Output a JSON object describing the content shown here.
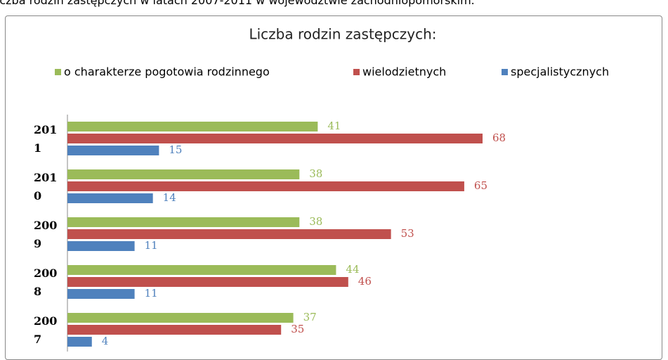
{
  "caption": "Liczba rodzin zastępczych w latach 2007-2011 w województwie zachodniopomorskim.",
  "chart_data": {
    "type": "bar",
    "orientation": "horizontal",
    "title": "Liczba rodzin zastępczych:",
    "categories": [
      "2011",
      "2010",
      "2009",
      "2008",
      "2007"
    ],
    "series": [
      {
        "name": "o charakterze pogotowia rodzinnego",
        "color": "#9bbb59",
        "values": [
          41,
          38,
          38,
          44,
          37
        ]
      },
      {
        "name": "wielodzietnych",
        "color": "#c0504d",
        "values": [
          68,
          65,
          53,
          46,
          35
        ]
      },
      {
        "name": "specjalistycznych",
        "color": "#4f81bd",
        "values": [
          15,
          14,
          11,
          11,
          4
        ]
      }
    ],
    "xlim": [
      0,
      80
    ],
    "legend": "top"
  }
}
